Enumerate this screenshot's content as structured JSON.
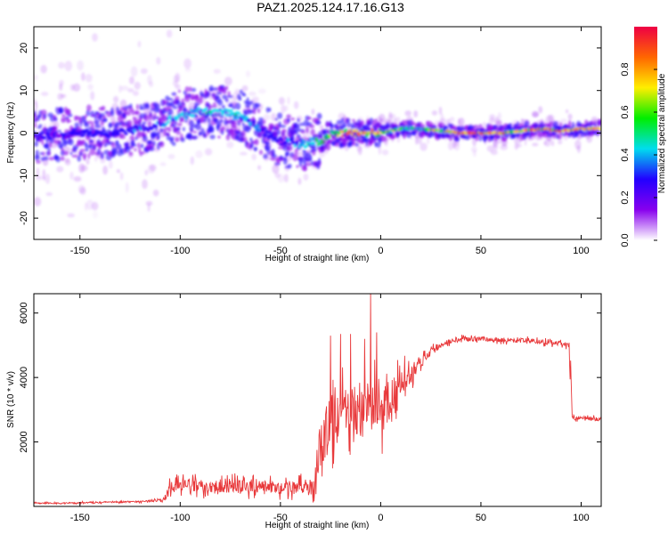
{
  "title": "PAZ1.2025.124.17.16.G13",
  "colors": {
    "snr_line": "#e8383a",
    "frame": "#000000",
    "colormap": [
      "#ffffff",
      "#8800ee",
      "#2200ff",
      "#00ddee",
      "#00ee00",
      "#ffee00",
      "#ff6600",
      "#ee0044"
    ]
  },
  "chart_data": [
    {
      "type": "heatmap",
      "title": "",
      "xlabel": "Height of straight line (km)",
      "ylabel": "Frequency (Hz)",
      "xlim": [
        -173,
        110
      ],
      "ylim": [
        -25,
        25
      ],
      "x_ticks": [
        "-150",
        "-100",
        "-50",
        "0",
        "50",
        "100"
      ],
      "y_ticks": [
        "-20",
        "-10",
        "0",
        "10",
        "20"
      ],
      "colorbar": {
        "label": "Normalized spectral amplitude",
        "range": [
          0,
          1
        ],
        "ticks": [
          "0.0",
          "0.2",
          "0.4",
          "0.6",
          "0.8"
        ]
      },
      "ridge": {
        "x": [
          -173,
          -150,
          -130,
          -110,
          -100,
          -90,
          -80,
          -70,
          -60,
          -50,
          -45,
          -40,
          -35,
          -30,
          -25,
          -20,
          -10,
          0,
          10,
          20,
          30,
          40,
          50,
          60,
          70,
          80,
          90,
          100,
          110
        ],
        "freq": [
          -1,
          0,
          0,
          2,
          4,
          5,
          5,
          4,
          1,
          -2,
          -2,
          -3,
          -2,
          -2,
          0,
          0,
          0,
          0,
          1,
          1,
          0.5,
          0,
          0,
          0,
          0.5,
          1,
          0.5,
          1,
          1
        ],
        "amplitude": [
          0.25,
          0.28,
          0.3,
          0.35,
          0.45,
          0.45,
          0.45,
          0.45,
          0.35,
          0.3,
          0.35,
          0.4,
          0.45,
          0.55,
          0.6,
          0.7,
          0.8,
          0.75,
          0.55,
          0.55,
          0.6,
          0.85,
          0.9,
          0.8,
          0.7,
          0.8,
          0.85,
          0.8,
          0.75
        ]
      }
    },
    {
      "type": "line",
      "title": "",
      "xlabel": "Height of straight line (km)",
      "ylabel": "SNR (10 * v/v)",
      "xlim": [
        -173,
        110
      ],
      "ylim": [
        0,
        6600
      ],
      "x_ticks": [
        "-150",
        "-100",
        "-50",
        "0",
        "50",
        "100"
      ],
      "y_ticks": [
        "2000",
        "4000",
        "6000"
      ],
      "series": [
        {
          "x": [
            -173,
            -160,
            -140,
            -120,
            -108,
            -105,
            -100,
            -95,
            -90,
            -80,
            -70,
            -60,
            -50,
            -40,
            -35,
            -32,
            -30,
            -25,
            -20,
            -15,
            -10,
            -5,
            0,
            5,
            10,
            15,
            20,
            25,
            30,
            35,
            40,
            50,
            60,
            70,
            80,
            90,
            94,
            95,
            96,
            100,
            110
          ],
          "values": [
            100,
            100,
            130,
            150,
            200,
            600,
            650,
            700,
            600,
            650,
            600,
            650,
            550,
            600,
            550,
            800,
            2000,
            2600,
            2800,
            3000,
            2900,
            3100,
            3000,
            3300,
            3600,
            4100,
            4500,
            4800,
            5000,
            5150,
            5200,
            5200,
            5150,
            5150,
            5100,
            5050,
            5000,
            2800,
            2750,
            2750,
            2700
          ],
          "noise": [
            30,
            30,
            40,
            40,
            60,
            300,
            300,
            300,
            300,
            350,
            350,
            350,
            300,
            350,
            350,
            800,
            1400,
            1400,
            1400,
            1300,
            1300,
            1300,
            1200,
            1100,
            900,
            500,
            300,
            200,
            150,
            120,
            120,
            120,
            120,
            120,
            120,
            120,
            120,
            120,
            100,
            100,
            100
          ],
          "spikes": [
            [
              -5,
              6600
            ],
            [
              -20,
              5350
            ],
            [
              -15,
              5350
            ],
            [
              -25,
              5300
            ],
            [
              -2,
              5400
            ],
            [
              -8,
              5200
            ]
          ]
        }
      ]
    }
  ]
}
